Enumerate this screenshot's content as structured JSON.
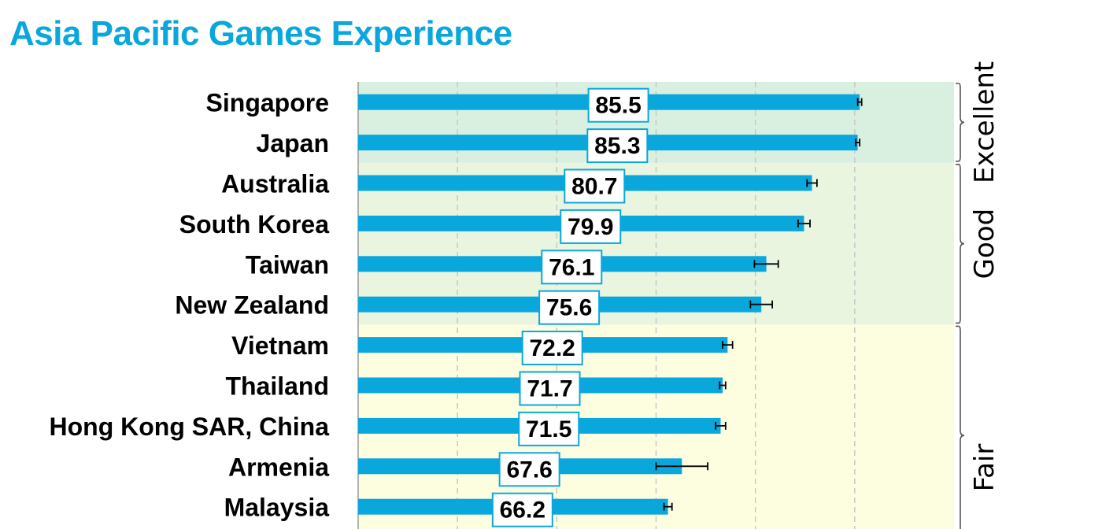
{
  "title": "Asia Pacific Games Experience",
  "chart_data": {
    "type": "bar",
    "orientation": "horizontal",
    "title": "Asia Pacific Games Experience",
    "xlabel": "",
    "ylabel": "",
    "xlim": [
      35,
      95
    ],
    "grid": true,
    "categories": [
      "Singapore",
      "Japan",
      "Australia",
      "South Korea",
      "Taiwan",
      "New Zealand",
      "Vietnam",
      "Thailand",
      "Hong Kong SAR, China",
      "Armenia",
      "Malaysia"
    ],
    "values": [
      85.5,
      85.3,
      80.7,
      79.9,
      76.1,
      75.6,
      72.2,
      71.7,
      71.5,
      67.6,
      66.2
    ],
    "value_labels": [
      "85.5",
      "85.3",
      "80.7",
      "79.9",
      "76.1",
      "75.6",
      "72.2",
      "71.7",
      "71.5",
      "67.6",
      "66.2"
    ],
    "errors": [
      0.2,
      0.2,
      0.5,
      0.6,
      1.2,
      1.1,
      0.5,
      0.3,
      0.5,
      2.6,
      0.4
    ],
    "bar_color": "#0aa7dd",
    "bands": [
      {
        "label": "Excellent",
        "start": 0,
        "end": 1,
        "color": "#d9f0e1"
      },
      {
        "label": "Good",
        "start": 2,
        "end": 5,
        "color": "#e9f5df"
      },
      {
        "label": "Fair",
        "start": 6,
        "end": 10,
        "color": "#fdfee0"
      }
    ]
  }
}
